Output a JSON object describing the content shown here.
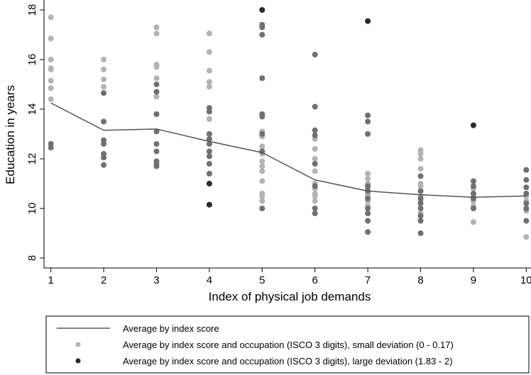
{
  "chart_data": {
    "type": "scatter",
    "x_label": "Index of physical job demands",
    "y_label": "Education in years",
    "xlim": [
      0.87,
      10.09
    ],
    "ylim": [
      7.6,
      18.4
    ],
    "xticks": [
      1,
      2,
      3,
      4,
      5,
      6,
      7,
      8,
      9,
      10
    ],
    "yticks": [
      8,
      10,
      12,
      14,
      16,
      18
    ],
    "series": [
      {
        "name": "Average by index score",
        "kind": "line",
        "color": "#555555",
        "x": [
          1,
          2,
          3,
          4,
          5,
          6,
          7,
          8,
          9,
          10
        ],
        "values": [
          14.25,
          13.15,
          13.2,
          12.7,
          12.25,
          11.15,
          10.7,
          10.55,
          10.45,
          10.5
        ]
      },
      {
        "name": "Average by index score and occupation (ISCO 3 digits), small deviation (0 - 0.17)",
        "kind": "scatter",
        "color": "#b3b3b3",
        "x": [
          1,
          1,
          1,
          1,
          1,
          1,
          1,
          1,
          2,
          2,
          2,
          2,
          3,
          3,
          3,
          3,
          3,
          3,
          4,
          4,
          4,
          4,
          4,
          4,
          5,
          5,
          5,
          5,
          5,
          5,
          5,
          5,
          5,
          5,
          5,
          6,
          6,
          6,
          6,
          6,
          6,
          6,
          6,
          6,
          7,
          7,
          7,
          7,
          7,
          7,
          7,
          7,
          8,
          8,
          8,
          8,
          8,
          8,
          8,
          8,
          8,
          9,
          9,
          9,
          9,
          9,
          10,
          10,
          10,
          10
        ],
        "values": [
          17.7,
          16.85,
          16.0,
          15.65,
          15.6,
          15.15,
          14.85,
          14.4,
          16.0,
          15.6,
          15.2,
          14.9,
          17.3,
          17.05,
          15.8,
          15.7,
          15.25,
          14.5,
          17.05,
          16.3,
          15.55,
          15.1,
          14.9,
          13.6,
          13.1,
          12.9,
          12.5,
          12.2,
          11.9,
          11.7,
          11.5,
          11.1,
          10.6,
          10.5,
          10.3,
          12.8,
          12.4,
          12.0,
          11.5,
          11.0,
          10.8,
          10.6,
          10.5,
          10.3,
          11.4,
          11.2,
          11.0,
          10.8,
          10.6,
          10.5,
          10.3,
          10.1,
          12.35,
          12.2,
          12.0,
          11.6,
          11.0,
          10.9,
          10.5,
          10.3,
          9.8,
          10.8,
          10.5,
          10.3,
          10.1,
          9.45,
          10.5,
          10.3,
          9.9,
          8.85
        ]
      },
      {
        "name": "Average by index score and occupation (ISCO 3 digits), large deviation (1.83 - 2)",
        "kind": "scatter",
        "color": "#2a2a2a",
        "x": [
          4,
          4,
          5,
          7,
          9
        ],
        "values": [
          11.0,
          10.15,
          18.0,
          17.55,
          13.35
        ]
      },
      {
        "kind": "scatter",
        "color": "#707070",
        "x": [
          1,
          1,
          2,
          2,
          2,
          2,
          2,
          2,
          2,
          3,
          3,
          3,
          3,
          3,
          3,
          3,
          3,
          3,
          4,
          4,
          4,
          4,
          4,
          4,
          4,
          4,
          4,
          5,
          5,
          5,
          5,
          5,
          5,
          5,
          5,
          5,
          6,
          6,
          6,
          6,
          6,
          6,
          6,
          6,
          7,
          7,
          7,
          7,
          7,
          7,
          7,
          7,
          7,
          7,
          8,
          8,
          8,
          8,
          8,
          8,
          8,
          8,
          9,
          9,
          9,
          9,
          9,
          10,
          10,
          10,
          10,
          10,
          10,
          10
        ],
        "values": [
          12.6,
          12.45,
          14.65,
          13.5,
          12.75,
          12.6,
          12.2,
          12.05,
          11.75,
          15.0,
          14.7,
          13.8,
          13.1,
          12.6,
          12.3,
          11.9,
          11.8,
          11.7,
          14.05,
          13.9,
          13.0,
          12.8,
          12.6,
          12.3,
          12.1,
          11.8,
          11.4,
          17.4,
          17.3,
          17.0,
          15.25,
          13.8,
          13.7,
          13.0,
          12.3,
          10.0,
          16.2,
          14.1,
          13.15,
          12.95,
          11.8,
          10.9,
          10.0,
          9.8,
          13.75,
          13.5,
          13.0,
          10.9,
          10.7,
          10.4,
          10.0,
          9.8,
          9.5,
          9.05,
          11.3,
          10.7,
          10.4,
          10.2,
          10.0,
          9.7,
          9.5,
          9.0,
          11.1,
          10.9,
          10.6,
          10.4,
          10.0,
          11.55,
          11.15,
          10.85,
          10.6,
          10.2,
          10.0,
          9.5
        ]
      }
    ]
  }
}
